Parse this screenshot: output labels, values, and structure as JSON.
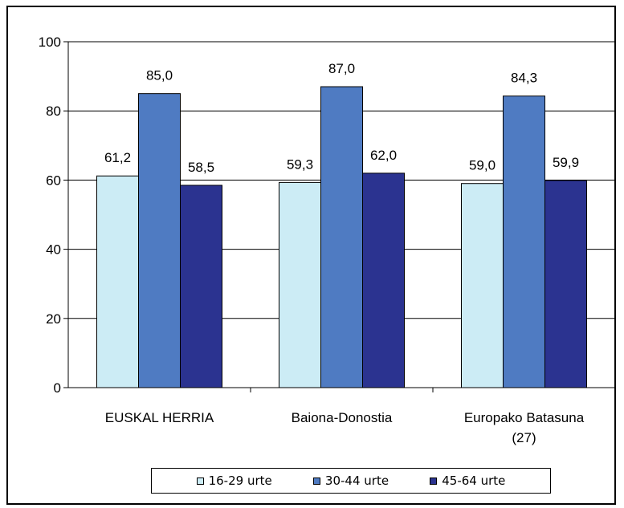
{
  "chart_data": {
    "type": "bar",
    "categories": [
      "EUSKAL HERRIA",
      "Baiona-Donostia",
      "Europako Batasuna (27)"
    ],
    "category_lines": [
      [
        "EUSKAL HERRIA"
      ],
      [
        "Baiona-Donostia"
      ],
      [
        "Europako Batasuna",
        "(27)"
      ]
    ],
    "series": [
      {
        "name": "16-29 urte",
        "values": [
          61.2,
          59.3,
          59.0
        ],
        "labels": [
          "61,2",
          "59,3",
          "59,0"
        ],
        "color": "#CCECF5"
      },
      {
        "name": "30-44 urte",
        "values": [
          85.0,
          87.0,
          84.3
        ],
        "labels": [
          "85,0",
          "87,0",
          "84,3"
        ],
        "color": "#4F7BC2"
      },
      {
        "name": "45-64 urte",
        "values": [
          58.5,
          62.0,
          59.9
        ],
        "labels": [
          "58,5",
          "62,0",
          "59,9"
        ],
        "color": "#2B3390"
      }
    ],
    "yticks": [
      "0",
      "20",
      "40",
      "60",
      "80",
      "100"
    ],
    "ylim": [
      0,
      100
    ],
    "ytick_step": 20,
    "grid": true,
    "legend": "bottom",
    "title": "",
    "xlabel": "",
    "ylabel": ""
  }
}
